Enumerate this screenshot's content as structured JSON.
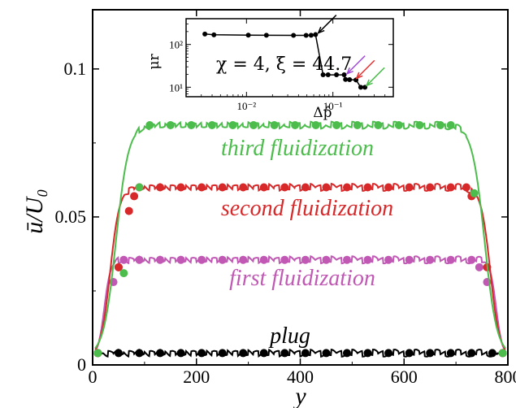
{
  "chart_data": [
    {
      "type": "line",
      "xlabel": "y",
      "ylabel": "ū/U₀",
      "xlim": [
        0,
        800
      ],
      "ylim": [
        0,
        0.12
      ],
      "x_ticks": [
        "0",
        "200",
        "400",
        "600",
        "800"
      ],
      "y_ticks": [
        "0",
        "0.05",
        "0.1"
      ],
      "y_tick_values": [
        0,
        0.05,
        0.1
      ],
      "x_tick_values": [
        0,
        200,
        400,
        600,
        800
      ],
      "legend": "none",
      "grid": false,
      "series": [
        {
          "name": "plug",
          "color": "#000000",
          "plateau": 0.004,
          "edge_width": 25,
          "markers_x": [
            10,
            50,
            90,
            130,
            170,
            210,
            250,
            290,
            330,
            370,
            410,
            450,
            490,
            530,
            570,
            610,
            650,
            690,
            730,
            770,
            790
          ],
          "markers_y": [
            0.004,
            0.004,
            0.004,
            0.004,
            0.004,
            0.004,
            0.004,
            0.004,
            0.004,
            0.004,
            0.004,
            0.004,
            0.004,
            0.004,
            0.004,
            0.004,
            0.004,
            0.004,
            0.004,
            0.004,
            0.004
          ]
        },
        {
          "name": "first fluidization",
          "color": "#c058b4",
          "plateau": 0.0355,
          "edge_width": 50,
          "markers_x": [
            10,
            40,
            50,
            60,
            90,
            130,
            170,
            210,
            250,
            290,
            330,
            370,
            410,
            450,
            490,
            530,
            570,
            610,
            650,
            690,
            730,
            745,
            760,
            790
          ],
          "markers_y": [
            0.004,
            0.028,
            0.033,
            0.0355,
            0.0355,
            0.0355,
            0.0355,
            0.0355,
            0.0355,
            0.0355,
            0.0355,
            0.0355,
            0.0355,
            0.0355,
            0.0355,
            0.0355,
            0.0355,
            0.0355,
            0.0355,
            0.0355,
            0.0355,
            0.033,
            0.028,
            0.004
          ]
        },
        {
          "name": "second fluidization",
          "color": "#d7282a",
          "plateau": 0.06,
          "edge_width": 75,
          "markers_x": [
            10,
            50,
            70,
            80,
            90,
            130,
            170,
            210,
            250,
            290,
            330,
            370,
            410,
            450,
            490,
            530,
            570,
            610,
            650,
            690,
            720,
            730,
            760,
            790
          ],
          "markers_y": [
            0.004,
            0.033,
            0.052,
            0.057,
            0.06,
            0.06,
            0.06,
            0.06,
            0.06,
            0.06,
            0.06,
            0.06,
            0.06,
            0.06,
            0.06,
            0.06,
            0.06,
            0.06,
            0.06,
            0.06,
            0.06,
            0.057,
            0.033,
            0.004
          ]
        },
        {
          "name": "third fluidization",
          "color": "#4cbd4c",
          "plateau": 0.081,
          "edge_width": 100,
          "markers_x": [
            10,
            60,
            90,
            110,
            150,
            190,
            230,
            270,
            310,
            350,
            390,
            430,
            470,
            510,
            550,
            590,
            630,
            670,
            690,
            735,
            790
          ],
          "markers_y": [
            0.004,
            0.031,
            0.06,
            0.081,
            0.081,
            0.081,
            0.081,
            0.081,
            0.081,
            0.081,
            0.081,
            0.081,
            0.081,
            0.081,
            0.081,
            0.081,
            0.081,
            0.081,
            0.081,
            0.058,
            0.004
          ]
        }
      ],
      "annotations": [
        "plug",
        "first fluidization",
        "second fluidization",
        "third fluidization"
      ]
    },
    {
      "type": "line",
      "inset": true,
      "xlabel": "Δp̂",
      "ylabel": "μr",
      "xscale": "log",
      "yscale": "log",
      "xlim": [
        0.002,
        0.5
      ],
      "ylim": [
        6,
        400
      ],
      "x_ticks": [
        "10⁻²",
        "10⁻¹"
      ],
      "y_ticks": [
        "10¹",
        "10²"
      ],
      "annotation": "χ = 4,  ξ = 44.7",
      "x": [
        0.0033,
        0.0042,
        0.0105,
        0.017,
        0.035,
        0.049,
        0.056,
        0.063,
        0.077,
        0.088,
        0.11,
        0.135,
        0.14,
        0.156,
        0.185,
        0.21,
        0.235
      ],
      "y": [
        175,
        168,
        165,
        164,
        163,
        163,
        164,
        170,
        19.5,
        19.5,
        19.5,
        19.5,
        15.2,
        15.0,
        14.8,
        10.0,
        10.0
      ],
      "arrows": [
        {
          "color": "#000000",
          "target_x": 0.065,
          "target_y": 170
        },
        {
          "color": "#a04ad8",
          "target_x": 0.14,
          "target_y": 19
        },
        {
          "color": "#e43030",
          "target_x": 0.18,
          "target_y": 14.8
        },
        {
          "color": "#4cbd4c",
          "target_x": 0.235,
          "target_y": 10
        }
      ]
    }
  ]
}
